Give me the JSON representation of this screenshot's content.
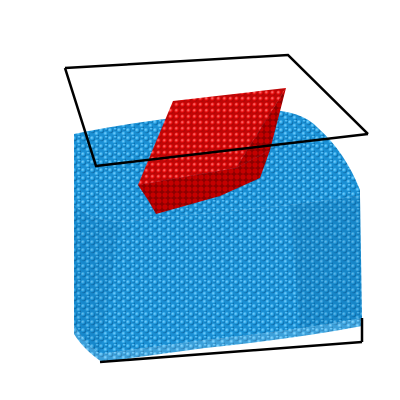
{
  "scene": {
    "description_free": true,
    "substrate_color": "#1e9be0",
    "substrate_shadow": "#0f6fb0",
    "substrate_highlight": "#5cc2f5",
    "crystal_color": "#e60000",
    "crystal_shadow": "#9a0000",
    "crystal_highlight": "#ff5a5a",
    "frame_color": "#000000"
  }
}
